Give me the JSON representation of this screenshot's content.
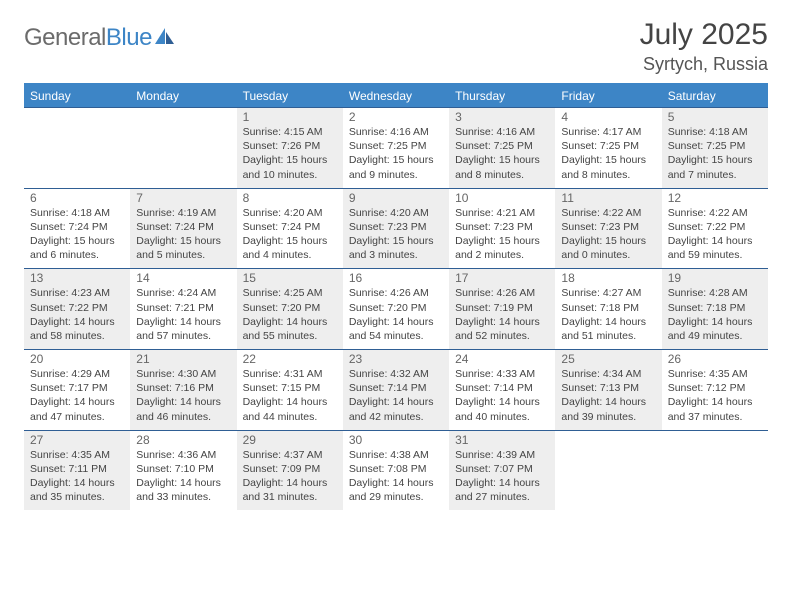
{
  "brand": {
    "name_gray": "General",
    "name_blue": "Blue"
  },
  "title": "July 2025",
  "location": "Syrtych, Russia",
  "colors": {
    "header_bg": "#3d85c6",
    "week_border": "#2f5e94",
    "shaded_bg": "#eeeeee",
    "text": "#444444",
    "daynum": "#666666"
  },
  "day_names": [
    "Sunday",
    "Monday",
    "Tuesday",
    "Wednesday",
    "Thursday",
    "Friday",
    "Saturday"
  ],
  "weeks": [
    [
      {
        "blank": true
      },
      {
        "blank": true
      },
      {
        "n": "1",
        "shaded": true,
        "sr": "Sunrise: 4:15 AM",
        "ss": "Sunset: 7:26 PM",
        "dl": "Daylight: 15 hours and 10 minutes."
      },
      {
        "n": "2",
        "sr": "Sunrise: 4:16 AM",
        "ss": "Sunset: 7:25 PM",
        "dl": "Daylight: 15 hours and 9 minutes."
      },
      {
        "n": "3",
        "shaded": true,
        "sr": "Sunrise: 4:16 AM",
        "ss": "Sunset: 7:25 PM",
        "dl": "Daylight: 15 hours and 8 minutes."
      },
      {
        "n": "4",
        "sr": "Sunrise: 4:17 AM",
        "ss": "Sunset: 7:25 PM",
        "dl": "Daylight: 15 hours and 8 minutes."
      },
      {
        "n": "5",
        "shaded": true,
        "sr": "Sunrise: 4:18 AM",
        "ss": "Sunset: 7:25 PM",
        "dl": "Daylight: 15 hours and 7 minutes."
      }
    ],
    [
      {
        "n": "6",
        "sr": "Sunrise: 4:18 AM",
        "ss": "Sunset: 7:24 PM",
        "dl": "Daylight: 15 hours and 6 minutes."
      },
      {
        "n": "7",
        "shaded": true,
        "sr": "Sunrise: 4:19 AM",
        "ss": "Sunset: 7:24 PM",
        "dl": "Daylight: 15 hours and 5 minutes."
      },
      {
        "n": "8",
        "sr": "Sunrise: 4:20 AM",
        "ss": "Sunset: 7:24 PM",
        "dl": "Daylight: 15 hours and 4 minutes."
      },
      {
        "n": "9",
        "shaded": true,
        "sr": "Sunrise: 4:20 AM",
        "ss": "Sunset: 7:23 PM",
        "dl": "Daylight: 15 hours and 3 minutes."
      },
      {
        "n": "10",
        "sr": "Sunrise: 4:21 AM",
        "ss": "Sunset: 7:23 PM",
        "dl": "Daylight: 15 hours and 2 minutes."
      },
      {
        "n": "11",
        "shaded": true,
        "sr": "Sunrise: 4:22 AM",
        "ss": "Sunset: 7:23 PM",
        "dl": "Daylight: 15 hours and 0 minutes."
      },
      {
        "n": "12",
        "sr": "Sunrise: 4:22 AM",
        "ss": "Sunset: 7:22 PM",
        "dl": "Daylight: 14 hours and 59 minutes."
      }
    ],
    [
      {
        "n": "13",
        "shaded": true,
        "sr": "Sunrise: 4:23 AM",
        "ss": "Sunset: 7:22 PM",
        "dl": "Daylight: 14 hours and 58 minutes."
      },
      {
        "n": "14",
        "sr": "Sunrise: 4:24 AM",
        "ss": "Sunset: 7:21 PM",
        "dl": "Daylight: 14 hours and 57 minutes."
      },
      {
        "n": "15",
        "shaded": true,
        "sr": "Sunrise: 4:25 AM",
        "ss": "Sunset: 7:20 PM",
        "dl": "Daylight: 14 hours and 55 minutes."
      },
      {
        "n": "16",
        "sr": "Sunrise: 4:26 AM",
        "ss": "Sunset: 7:20 PM",
        "dl": "Daylight: 14 hours and 54 minutes."
      },
      {
        "n": "17",
        "shaded": true,
        "sr": "Sunrise: 4:26 AM",
        "ss": "Sunset: 7:19 PM",
        "dl": "Daylight: 14 hours and 52 minutes."
      },
      {
        "n": "18",
        "sr": "Sunrise: 4:27 AM",
        "ss": "Sunset: 7:18 PM",
        "dl": "Daylight: 14 hours and 51 minutes."
      },
      {
        "n": "19",
        "shaded": true,
        "sr": "Sunrise: 4:28 AM",
        "ss": "Sunset: 7:18 PM",
        "dl": "Daylight: 14 hours and 49 minutes."
      }
    ],
    [
      {
        "n": "20",
        "sr": "Sunrise: 4:29 AM",
        "ss": "Sunset: 7:17 PM",
        "dl": "Daylight: 14 hours and 47 minutes."
      },
      {
        "n": "21",
        "shaded": true,
        "sr": "Sunrise: 4:30 AM",
        "ss": "Sunset: 7:16 PM",
        "dl": "Daylight: 14 hours and 46 minutes."
      },
      {
        "n": "22",
        "sr": "Sunrise: 4:31 AM",
        "ss": "Sunset: 7:15 PM",
        "dl": "Daylight: 14 hours and 44 minutes."
      },
      {
        "n": "23",
        "shaded": true,
        "sr": "Sunrise: 4:32 AM",
        "ss": "Sunset: 7:14 PM",
        "dl": "Daylight: 14 hours and 42 minutes."
      },
      {
        "n": "24",
        "sr": "Sunrise: 4:33 AM",
        "ss": "Sunset: 7:14 PM",
        "dl": "Daylight: 14 hours and 40 minutes."
      },
      {
        "n": "25",
        "shaded": true,
        "sr": "Sunrise: 4:34 AM",
        "ss": "Sunset: 7:13 PM",
        "dl": "Daylight: 14 hours and 39 minutes."
      },
      {
        "n": "26",
        "sr": "Sunrise: 4:35 AM",
        "ss": "Sunset: 7:12 PM",
        "dl": "Daylight: 14 hours and 37 minutes."
      }
    ],
    [
      {
        "n": "27",
        "shaded": true,
        "sr": "Sunrise: 4:35 AM",
        "ss": "Sunset: 7:11 PM",
        "dl": "Daylight: 14 hours and 35 minutes."
      },
      {
        "n": "28",
        "sr": "Sunrise: 4:36 AM",
        "ss": "Sunset: 7:10 PM",
        "dl": "Daylight: 14 hours and 33 minutes."
      },
      {
        "n": "29",
        "shaded": true,
        "sr": "Sunrise: 4:37 AM",
        "ss": "Sunset: 7:09 PM",
        "dl": "Daylight: 14 hours and 31 minutes."
      },
      {
        "n": "30",
        "sr": "Sunrise: 4:38 AM",
        "ss": "Sunset: 7:08 PM",
        "dl": "Daylight: 14 hours and 29 minutes."
      },
      {
        "n": "31",
        "shaded": true,
        "sr": "Sunrise: 4:39 AM",
        "ss": "Sunset: 7:07 PM",
        "dl": "Daylight: 14 hours and 27 minutes."
      },
      {
        "blank": true
      },
      {
        "blank": true
      }
    ]
  ]
}
